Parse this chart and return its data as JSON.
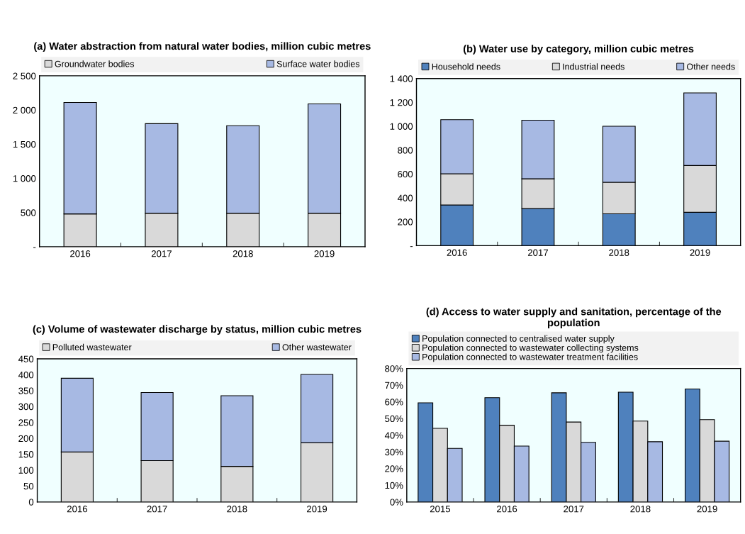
{
  "chart_data": [
    {
      "type": "bar",
      "title": "(a) Water abstraction from natural water bodies, million cubic metres",
      "categories": [
        "2016",
        "2017",
        "2018",
        "2019"
      ],
      "stacked": true,
      "legend": "top",
      "series": [
        {
          "name": "Groundwater bodies",
          "color": "#d9d9d9",
          "values": [
            480,
            490,
            490,
            490
          ]
        },
        {
          "name": "Surface water bodies",
          "color": "#a7b9e3",
          "values": [
            1630,
            1310,
            1280,
            1600
          ]
        }
      ],
      "ylim": [
        0,
        2500
      ],
      "yticks": [
        {
          "value": 0,
          "label": "-"
        },
        {
          "value": 500,
          "label": "500"
        },
        {
          "value": 1000,
          "label": "1 000"
        },
        {
          "value": 1500,
          "label": "1 500"
        },
        {
          "value": 2000,
          "label": "2 000"
        },
        {
          "value": 2500,
          "label": "2 500"
        }
      ]
    },
    {
      "type": "bar",
      "title": "(b) Water use by category, million cubic metres",
      "categories": [
        "2016",
        "2017",
        "2018",
        "2019"
      ],
      "stacked": true,
      "legend": "top",
      "series": [
        {
          "name": "Household needs",
          "color": "#4f81bd",
          "values": [
            341,
            311,
            267,
            279
          ]
        },
        {
          "name": "Industrial needs",
          "color": "#d9d9d9",
          "values": [
            261,
            249,
            264,
            392
          ]
        },
        {
          "name": "Other needs",
          "color": "#a7b9e3",
          "values": [
            453,
            491,
            469,
            608
          ]
        }
      ],
      "ylim": [
        0,
        1400
      ],
      "yticks": [
        {
          "value": 0,
          "label": "-"
        },
        200,
        400,
        600,
        800,
        {
          "value": 1000,
          "label": "1 000"
        },
        {
          "value": 1200,
          "label": "1 200"
        },
        {
          "value": 1400,
          "label": "1 400"
        }
      ]
    },
    {
      "type": "bar",
      "title": "(c) Volume of wastewater discharge by status, million cubic metres",
      "categories": [
        "2016",
        "2017",
        "2018",
        "2019"
      ],
      "stacked": true,
      "legend": "top",
      "series": [
        {
          "name": "Polluted wastewater",
          "color": "#d9d9d9",
          "values": [
            157,
            130,
            112,
            186
          ]
        },
        {
          "name": "Other wastewater",
          "color": "#a7b9e3",
          "values": [
            232,
            214,
            222,
            215
          ]
        }
      ],
      "ylim": [
        0,
        450
      ],
      "yticks": [
        0,
        50,
        100,
        150,
        200,
        250,
        300,
        350,
        400,
        450
      ]
    },
    {
      "type": "bar",
      "title": "(d) Access to water supply and sanitation, percentage of the population",
      "categories": [
        "2015",
        "2016",
        "2017",
        "2018",
        "2019"
      ],
      "legend": "top",
      "series": [
        {
          "name": "Population connected to centralised water supply",
          "color": "#4f81bd",
          "values": [
            59.4,
            62.5,
            65.4,
            65.8,
            67.7
          ]
        },
        {
          "name": "Population connected to wastewater collecting systems",
          "color": "#d9d9d9",
          "values": [
            44.1,
            46.0,
            47.9,
            48.5,
            49.3
          ]
        },
        {
          "name": "Population connected to wastewater treatment facilities",
          "color": "#a7b9e3",
          "values": [
            32.1,
            33.5,
            35.7,
            36.1,
            36.4
          ]
        }
      ],
      "ylim": [
        0,
        80
      ],
      "yticks": [
        {
          "value": 0,
          "label": "0%"
        },
        {
          "value": 10,
          "label": "10%"
        },
        {
          "value": 20,
          "label": "20%"
        },
        {
          "value": 30,
          "label": "30%"
        },
        {
          "value": 40,
          "label": "40%"
        },
        {
          "value": 50,
          "label": "50%"
        },
        {
          "value": 60,
          "label": "60%"
        },
        {
          "value": 70,
          "label": "70%"
        },
        {
          "value": 80,
          "label": "80%"
        }
      ]
    }
  ]
}
